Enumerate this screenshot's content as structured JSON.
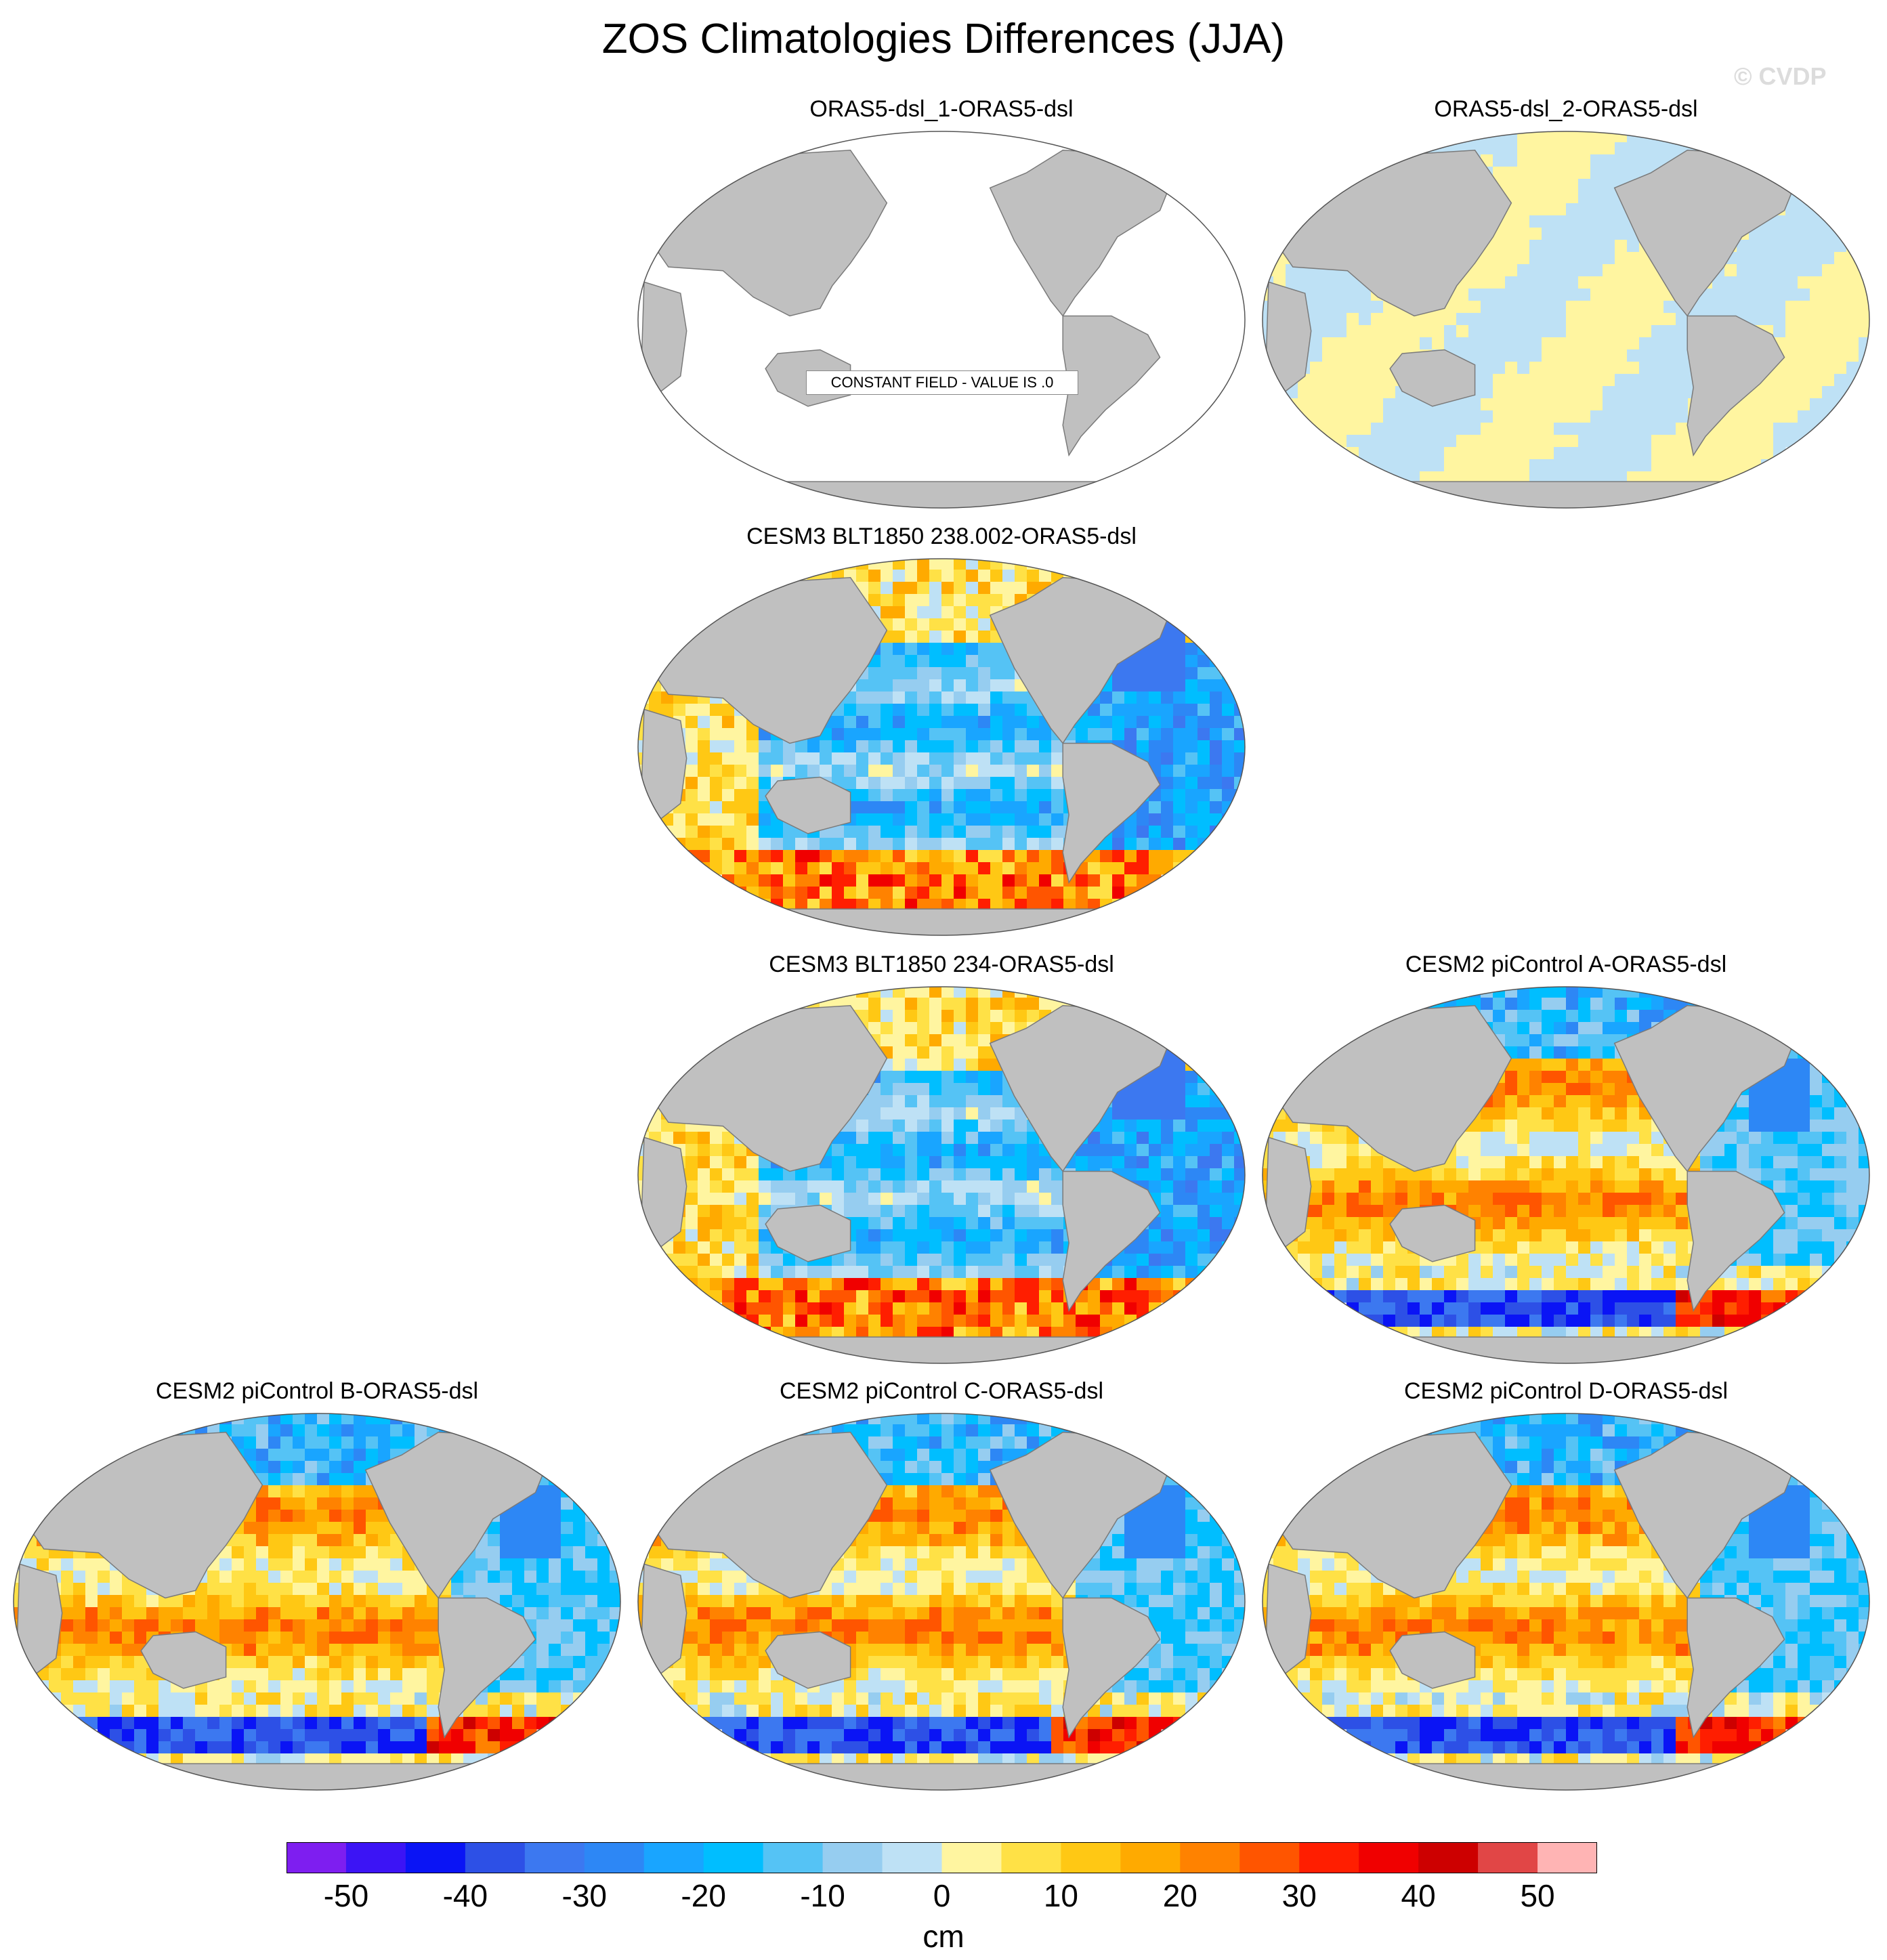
{
  "title": "ZOS Climatologies Differences (JJA)",
  "watermark": "© CVDP",
  "panels": [
    {
      "id": "p1",
      "title": "ORAS5-dsl_1-ORAS5-dsl",
      "pattern": "constant",
      "note": "CONSTANT FIELD - VALUE IS .0"
    },
    {
      "id": "p2",
      "title": "ORAS5-dsl_2-ORAS5-dsl",
      "pattern": "near-zero"
    },
    {
      "id": "p3",
      "title": "CESM3 BLT1850 238.002-ORAS5-dsl",
      "pattern": "cesm3"
    },
    {
      "id": "p4",
      "title": "CESM3 BLT1850 234-ORAS5-dsl",
      "pattern": "cesm3"
    },
    {
      "id": "p5",
      "title": "CESM2 piControl A-ORAS5-dsl",
      "pattern": "cesm2"
    },
    {
      "id": "p6",
      "title": "CESM2 piControl B-ORAS5-dsl",
      "pattern": "cesm2"
    },
    {
      "id": "p7",
      "title": "CESM2 piControl C-ORAS5-dsl",
      "pattern": "cesm2"
    },
    {
      "id": "p8",
      "title": "CESM2 piControl D-ORAS5-dsl",
      "pattern": "cesm2"
    }
  ],
  "colorbar": {
    "unit": "cm",
    "ticks": [
      "-50",
      "-40",
      "-30",
      "-20",
      "-10",
      "0",
      "10",
      "20",
      "30",
      "40",
      "50"
    ],
    "colors": [
      "#7e1ef0",
      "#3c14f5",
      "#0a14f5",
      "#2d50e6",
      "#3c78f0",
      "#2d87f5",
      "#19a5ff",
      "#00beff",
      "#55c3f5",
      "#96cdf0",
      "#bee1f5",
      "#fff5a0",
      "#ffe146",
      "#ffc814",
      "#ffaa00",
      "#ff8200",
      "#ff5500",
      "#ff1e00",
      "#f00000",
      "#cd0000",
      "#e14646",
      "#ffb4b4"
    ]
  }
}
